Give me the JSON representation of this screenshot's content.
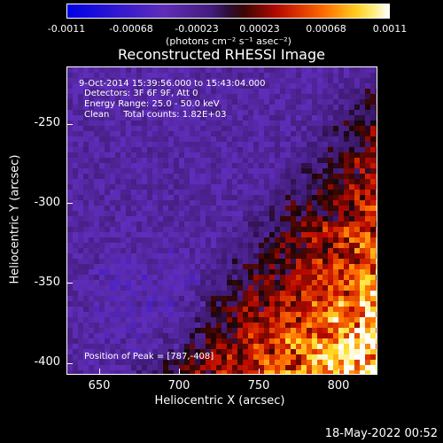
{
  "colorbar": {
    "ticks": [
      "-0.0011",
      "-0.00068",
      "-0.00023",
      "0.00023",
      "0.00068",
      "0.0011"
    ],
    "unit": "(photons cm⁻² s⁻¹ asec⁻²)"
  },
  "chart_data": {
    "type": "heatmap",
    "title": "Reconstructed RHESSI Image",
    "xlabel": "Heliocentric X (arcsec)",
    "ylabel": "Heliocentric Y (arcsec)",
    "xlim": [
      630,
      823
    ],
    "ylim": [
      -408,
      -215
    ],
    "xticks": [
      "650",
      "700",
      "750",
      "800"
    ],
    "yticks": [
      "-250",
      "-300",
      "-350",
      "-400"
    ],
    "color_range": [
      -0.0011,
      0.0011
    ],
    "peak": [
      787,
      -408
    ],
    "annotations": [
      "9-Oct-2014 15:39:56.000 to 15:43:04.000",
      "Detectors: 3F 6F 9F, Att 0",
      "Energy Range: 25.0 - 50.0 keV",
      "Clean     Total counts: 1.82E+03",
      "Position of Peak = [787,-408]"
    ]
  },
  "timestamp": "18-May-2022 00:52"
}
